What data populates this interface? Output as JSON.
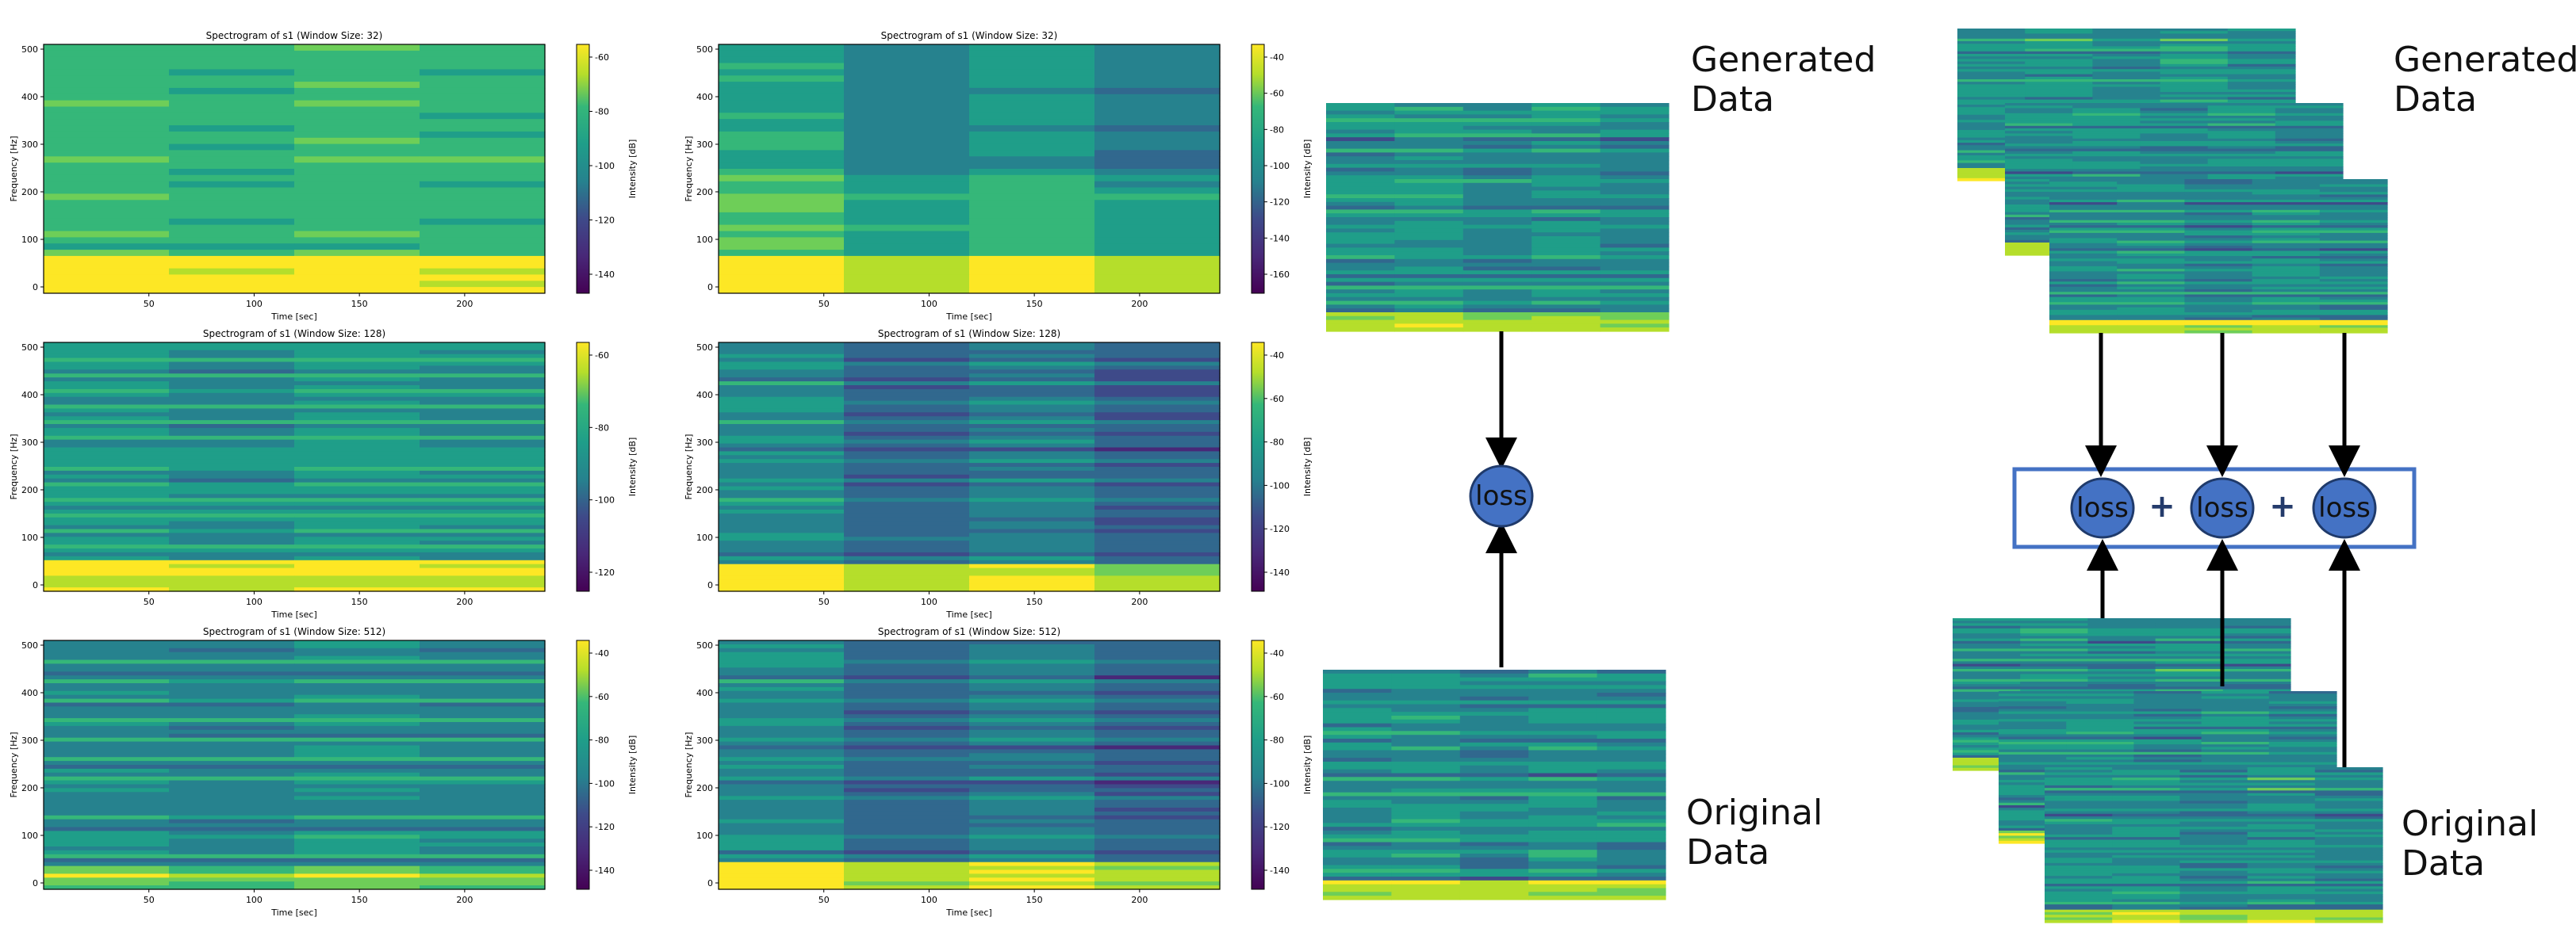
{
  "colors": {
    "viridis": [
      "#440154",
      "#482878",
      "#3e4a89",
      "#31688e",
      "#26828e",
      "#1f9e89",
      "#35b779",
      "#6ece58",
      "#b5de2b",
      "#fde725"
    ],
    "loss_fill": "#4472c4",
    "box_stroke": "#4472c4",
    "arrow": "#000000"
  },
  "spectrograms": [
    {
      "title": "Spectrogram of s1 (Window Size: 32)",
      "xlabel": "Time [sec]",
      "ylabel": "Frequency [Hz]",
      "cbar_label": "Intensity [dB]",
      "xticks": [
        "50",
        "100",
        "150",
        "200"
      ],
      "yticks": [
        "0",
        "100",
        "200",
        "300",
        "400",
        "500"
      ],
      "cbar_ticks": [
        "-60",
        "-80",
        "-100",
        "-120",
        "-140"
      ]
    },
    {
      "title": "Spectrogram of s1 (Window Size: 32)",
      "xlabel": "Time [sec]",
      "ylabel": "Frequency [Hz]",
      "cbar_label": "Intensity [dB]",
      "xticks": [
        "50",
        "100",
        "150",
        "200"
      ],
      "yticks": [
        "0",
        "100",
        "200",
        "300",
        "400",
        "500"
      ],
      "cbar_ticks": [
        "-40",
        "-60",
        "-80",
        "-100",
        "-120",
        "-140",
        "-160"
      ]
    },
    {
      "title": "Spectrogram of s1 (Window Size: 128)",
      "xlabel": "Time [sec]",
      "ylabel": "Frequency [Hz]",
      "cbar_label": "Intensity [dB]",
      "xticks": [
        "50",
        "100",
        "150",
        "200"
      ],
      "yticks": [
        "0",
        "100",
        "200",
        "300",
        "400",
        "500"
      ],
      "cbar_ticks": [
        "-60",
        "-80",
        "-100",
        "-120"
      ]
    },
    {
      "title": "Spectrogram of s1 (Window Size: 128)",
      "xlabel": "Time [sec]",
      "ylabel": "Frequency [Hz]",
      "cbar_label": "Intensity [dB]",
      "xticks": [
        "50",
        "100",
        "150",
        "200"
      ],
      "yticks": [
        "0",
        "100",
        "200",
        "300",
        "400",
        "500"
      ],
      "cbar_ticks": [
        "-40",
        "-60",
        "-80",
        "-100",
        "-120",
        "-140"
      ]
    },
    {
      "title": "Spectrogram of s1 (Window Size: 512)",
      "xlabel": "Time [sec]",
      "ylabel": "Frequency [Hz]",
      "cbar_label": "Intensity [dB]",
      "xticks": [
        "50",
        "100",
        "150",
        "200"
      ],
      "yticks": [
        "0",
        "100",
        "200",
        "300",
        "400",
        "500"
      ],
      "cbar_ticks": [
        "-40",
        "-60",
        "-80",
        "-100",
        "-120",
        "-140"
      ]
    },
    {
      "title": "Spectrogram of s1 (Window Size: 512)",
      "xlabel": "Time [sec]",
      "ylabel": "Frequency [Hz]",
      "cbar_label": "Intensity [dB]",
      "xticks": [
        "50",
        "100",
        "150",
        "200"
      ],
      "yticks": [
        "0",
        "100",
        "200",
        "300",
        "400",
        "500"
      ],
      "cbar_ticks": [
        "-40",
        "-60",
        "-80",
        "-100",
        "-120",
        "-140"
      ]
    }
  ],
  "diagram_single": {
    "top_label_line1": "Generated",
    "top_label_line2": "Data",
    "bottom_label_line1": "Original",
    "bottom_label_line2": "Data",
    "loss_label": "loss"
  },
  "diagram_multi": {
    "top_label_line1": "Generated",
    "top_label_line2": "Data",
    "bottom_label_line1": "Original",
    "bottom_label_line2": "Data",
    "loss_labels": [
      "loss",
      "loss",
      "loss"
    ],
    "plus_signs": [
      "+",
      "+"
    ]
  }
}
